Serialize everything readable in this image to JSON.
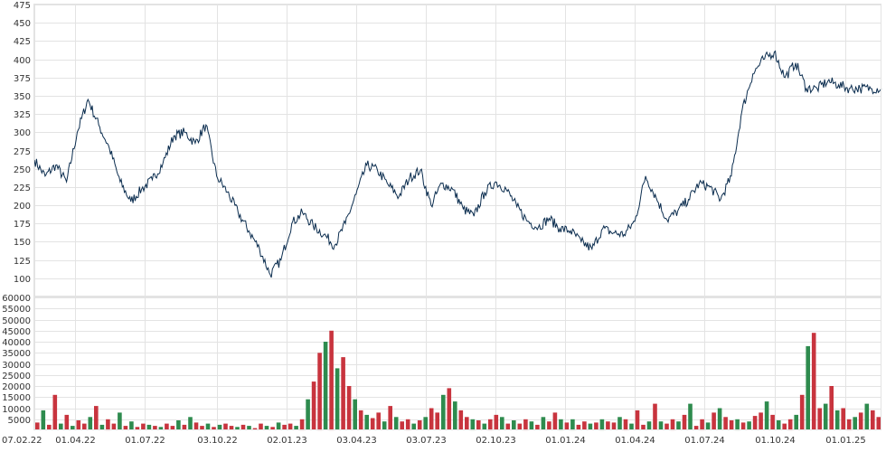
{
  "chart_data": [
    {
      "type": "line",
      "grid": true,
      "ylim": [
        75,
        475
      ],
      "yticks": [
        100,
        125,
        150,
        175,
        200,
        225,
        250,
        275,
        300,
        325,
        350,
        375,
        400,
        425,
        450,
        475
      ],
      "color": "#0b2d4f",
      "series": [
        {
          "x": [
            "2022-02-07",
            "2022-02-21",
            "2022-03-07",
            "2022-03-21",
            "2022-04-04",
            "2022-04-18",
            "2022-05-02",
            "2022-05-16",
            "2022-05-30",
            "2022-06-13",
            "2022-06-27",
            "2022-07-11",
            "2022-07-25",
            "2022-08-08",
            "2022-08-22",
            "2022-09-05",
            "2022-09-19",
            "2022-10-03",
            "2022-10-17",
            "2022-10-31",
            "2022-11-14",
            "2022-11-28",
            "2022-12-12",
            "2022-12-26",
            "2023-01-09",
            "2023-01-23",
            "2023-02-06",
            "2023-02-20",
            "2023-03-06",
            "2023-03-20",
            "2023-04-03",
            "2023-04-17",
            "2023-05-01",
            "2023-05-15",
            "2023-05-29",
            "2023-06-12",
            "2023-06-26",
            "2023-07-10",
            "2023-07-24",
            "2023-08-07",
            "2023-08-21",
            "2023-09-04",
            "2023-09-18",
            "2023-10-02",
            "2023-10-16",
            "2023-10-30",
            "2023-11-13",
            "2023-11-27",
            "2023-12-11",
            "2023-12-25",
            "2024-01-08",
            "2024-01-22",
            "2024-02-05",
            "2024-02-19",
            "2024-03-04",
            "2024-03-18",
            "2024-04-01",
            "2024-04-15",
            "2024-04-29",
            "2024-05-13",
            "2024-05-27",
            "2024-06-10",
            "2024-06-24",
            "2024-07-08",
            "2024-07-22",
            "2024-08-05",
            "2024-08-19",
            "2024-09-02",
            "2024-09-16",
            "2024-09-30",
            "2024-10-14",
            "2024-10-28",
            "2024-11-11",
            "2024-11-25",
            "2024-12-09",
            "2024-12-23",
            "2025-01-06",
            "2025-01-20",
            "2025-02-03",
            "2025-02-17"
          ],
          "values": [
            262,
            240,
            255,
            232,
            300,
            345,
            310,
            278,
            232,
            205,
            222,
            235,
            258,
            295,
            300,
            285,
            310,
            240,
            218,
            190,
            165,
            140,
            105,
            125,
            175,
            190,
            172,
            160,
            145,
            175,
            215,
            255,
            248,
            228,
            212,
            238,
            248,
            200,
            230,
            222,
            195,
            185,
            218,
            232,
            222,
            198,
            178,
            170,
            182,
            168,
            165,
            150,
            140,
            168,
            162,
            160,
            178,
            240,
            210,
            180,
            192,
            208,
            230,
            225,
            208,
            240,
            330,
            380,
            400,
            410,
            375,
            395,
            360,
            360,
            370,
            365,
            360,
            360,
            360,
            360
          ]
        }
      ]
    },
    {
      "type": "bar",
      "grid": true,
      "ylim": [
        0,
        60000
      ],
      "yticks": [
        5000,
        10000,
        15000,
        20000,
        25000,
        30000,
        35000,
        40000,
        45000,
        50000,
        55000,
        60000
      ],
      "colors": {
        "up": "#2e8b4e",
        "down": "#c8343e"
      },
      "values": [
        3500,
        9000,
        2500,
        16000,
        3000,
        7000,
        2000,
        4500,
        3000,
        6000,
        11000,
        2500,
        5000,
        3000,
        8000,
        2000,
        4000,
        1500,
        3000,
        2500,
        2000,
        1500,
        3000,
        2000,
        4500,
        2500,
        6000,
        3500,
        2000,
        3000,
        1500,
        2500,
        3000,
        2000,
        1500,
        2500,
        2000,
        1000,
        3000,
        2000,
        1500,
        3500,
        2500,
        3000,
        2000,
        5000,
        14000,
        22000,
        35000,
        40000,
        45000,
        28000,
        33000,
        20000,
        14000,
        9000,
        7000,
        5500,
        8000,
        4000,
        11000,
        6000,
        4000,
        5000,
        3000,
        4500,
        6000,
        10000,
        8000,
        16000,
        19000,
        13000,
        9000,
        6000,
        5000,
        4500,
        3000,
        5000,
        7000,
        6000,
        3000,
        4500,
        3000,
        5000,
        4000,
        2500,
        6000,
        4000,
        8000,
        5000,
        3500,
        5000,
        2500,
        4000,
        3000,
        3500,
        5000,
        4000,
        3500,
        6000,
        5000,
        3000,
        9000,
        2500,
        4000,
        12000,
        4000,
        3000,
        5000,
        4000,
        7000,
        12000,
        2000,
        5000,
        3500,
        8000,
        10000,
        6000,
        4500,
        5000,
        3500,
        4000,
        6500,
        8000,
        13000,
        7000,
        4500,
        3000,
        5000,
        7000,
        16000,
        38000,
        44000,
        10000,
        12000,
        20000,
        9000,
        10000,
        5000,
        6000,
        8000,
        12000,
        9000,
        6000
      ]
    }
  ],
  "price_axis": {
    "labels": [
      "100",
      "125",
      "150",
      "175",
      "200",
      "225",
      "250",
      "275",
      "300",
      "325",
      "350",
      "375",
      "400",
      "425",
      "450",
      "475"
    ]
  },
  "volume_axis": {
    "labels": [
      "5000",
      "10000",
      "15000",
      "20000",
      "25000",
      "30000",
      "35000",
      "40000",
      "45000",
      "50000",
      "55000",
      "60000"
    ]
  },
  "x_axis": {
    "labels": [
      "07.02.22",
      "01.04.22",
      "01.07.22",
      "03.10.22",
      "02.01.23",
      "03.04.23",
      "03.07.23",
      "02.10.23",
      "01.01.24",
      "01.04.24",
      "01.07.24",
      "01.10.24",
      "01.01.25"
    ],
    "dates": [
      "2022-02-07",
      "2022-04-01",
      "2022-07-01",
      "2022-10-03",
      "2023-01-02",
      "2023-04-03",
      "2023-07-03",
      "2023-10-02",
      "2024-01-01",
      "2024-04-01",
      "2024-07-01",
      "2024-10-01",
      "2025-01-01"
    ]
  }
}
